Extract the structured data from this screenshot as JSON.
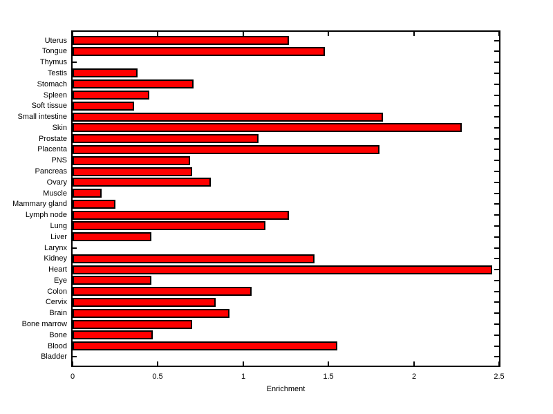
{
  "chart_data": {
    "type": "bar",
    "orientation": "horizontal",
    "title": "",
    "xlabel": "Enrichment",
    "ylabel": "",
    "xlim": [
      0,
      2.5
    ],
    "xticks": [
      0,
      0.5,
      1,
      1.5,
      2,
      2.5
    ],
    "xticklabels": [
      "0",
      "0.5",
      "1",
      "1.5",
      "2",
      "2.5"
    ],
    "grid": false,
    "legend": null,
    "categories": [
      "Uterus",
      "Tongue",
      "Thymus",
      "Testis",
      "Stomach",
      "Spleen",
      "Soft tissue",
      "Small intestine",
      "Skin",
      "Prostate",
      "Placenta",
      "PNS",
      "Pancreas",
      "Ovary",
      "Muscle",
      "Mammary gland",
      "Lymph node",
      "Lung",
      "Liver",
      "Larynx",
      "Kidney",
      "Heart",
      "Eye",
      "Colon",
      "Cervix",
      "Brain",
      "Bone marrow",
      "Bone",
      "Blood",
      "Bladder"
    ],
    "values": [
      1.27,
      1.48,
      0,
      0.38,
      0.71,
      0.45,
      0.36,
      1.82,
      2.28,
      1.09,
      1.8,
      0.69,
      0.7,
      0.81,
      0.17,
      0.25,
      1.27,
      1.13,
      0.46,
      0,
      1.42,
      2.46,
      0.46,
      1.05,
      0.84,
      0.92,
      0.7,
      0.47,
      1.55,
      0
    ],
    "colors": {
      "bar_fill": "#ff0000",
      "bar_edge": "#000000",
      "axis": "#000000",
      "background": "#ffffff",
      "text": "#000000"
    }
  }
}
